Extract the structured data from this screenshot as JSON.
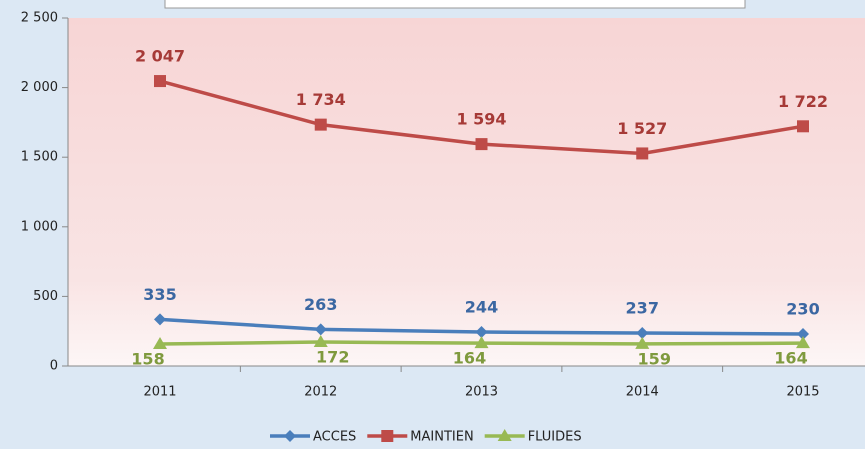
{
  "chart_data": {
    "type": "line",
    "categories": [
      "2011",
      "2012",
      "2013",
      "2014",
      "2015"
    ],
    "series": [
      {
        "name": "ACCES",
        "color": "#4a7ebb",
        "label_color": "#3b67a2",
        "marker": "diamond",
        "values": [
          335,
          263,
          244,
          237,
          230
        ]
      },
      {
        "name": "MAINTIEN",
        "color": "#be4b48",
        "label_color": "#a63a37",
        "marker": "square",
        "values": [
          2047,
          1734,
          1594,
          1527,
          1722
        ],
        "value_labels": [
          "2 047",
          "1 734",
          "1 594",
          "1 527",
          "1 722"
        ]
      },
      {
        "name": "FLUIDES",
        "color": "#98b954",
        "label_color": "#7f9a3e",
        "marker": "triangle",
        "values": [
          158,
          172,
          164,
          159,
          164
        ]
      }
    ],
    "ylim": [
      0,
      2500
    ],
    "yticks": [
      0,
      500,
      {
        "value": 1000,
        "label": "1 000"
      },
      {
        "value": 1500,
        "label": "1 500"
      },
      {
        "value": 2000,
        "label": "2 000"
      },
      {
        "value": 2500,
        "label": "2 500"
      }
    ],
    "legend": "bottom"
  }
}
